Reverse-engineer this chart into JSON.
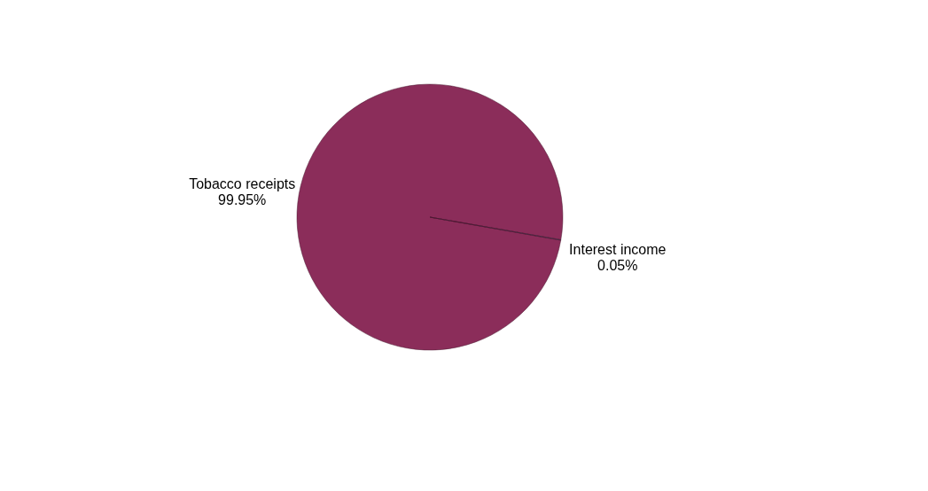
{
  "chart_data": {
    "type": "pie",
    "categories": [
      "Tobacco receipts",
      "Interest income"
    ],
    "values": [
      99.95,
      0.05
    ],
    "colors": [
      "#8b2d5a",
      "#3d3f6e"
    ],
    "value_labels": [
      "99.95%",
      "0.05%"
    ],
    "legend": false
  }
}
